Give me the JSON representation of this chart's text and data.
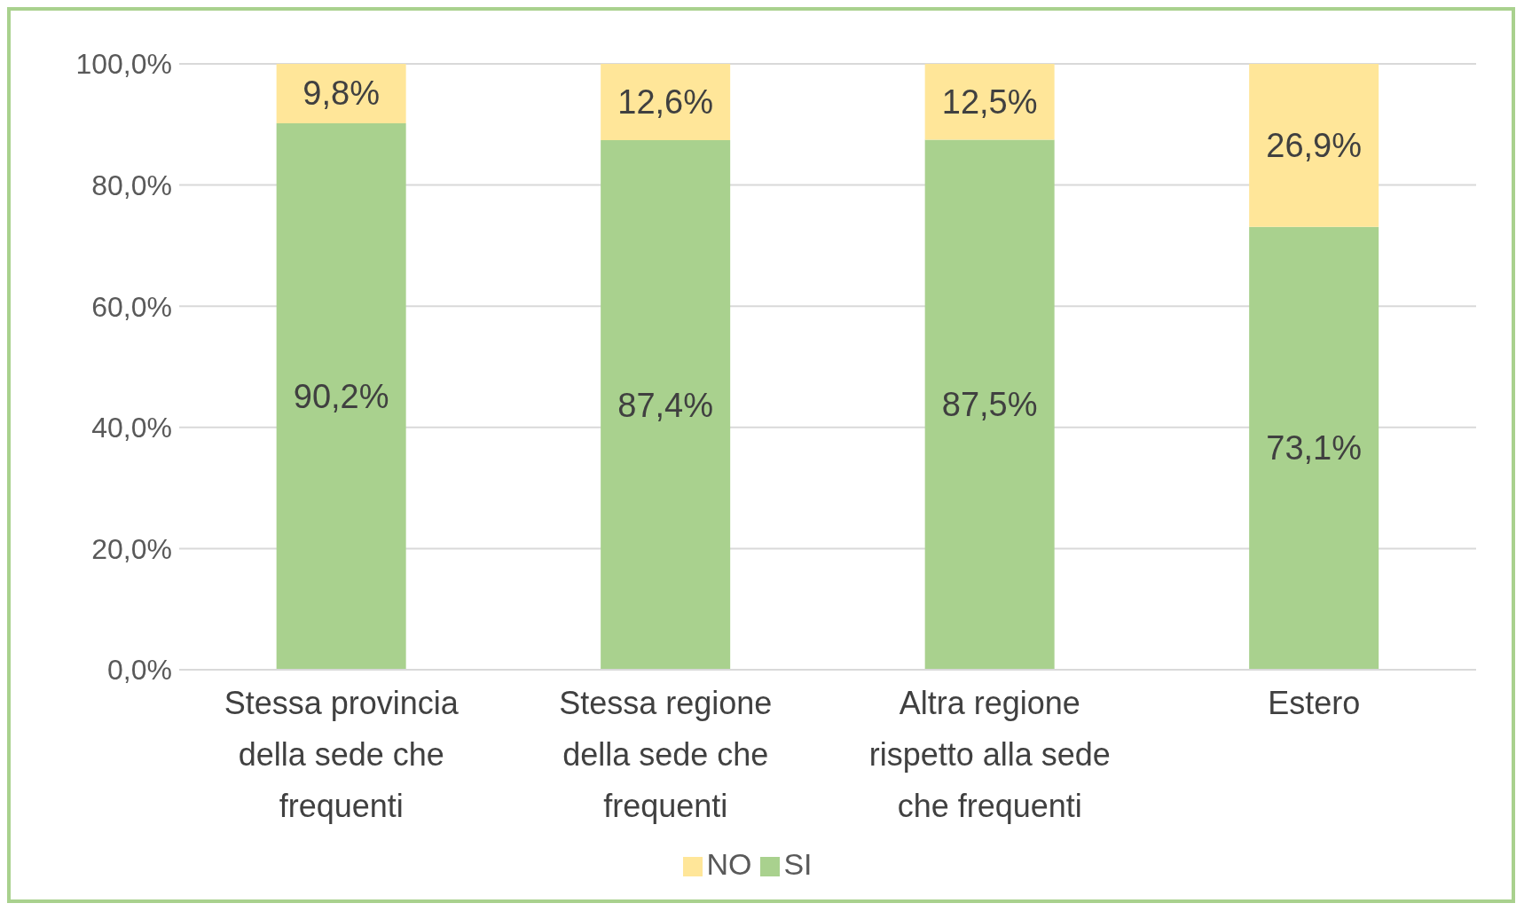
{
  "chart_data": {
    "type": "bar",
    "stacked": true,
    "categories": [
      "Stessa provincia della sede che frequenti",
      "Stessa regione della sede che frequenti",
      "Altra regione rispetto alla sede che frequenti",
      "Estero"
    ],
    "series": [
      {
        "name": "SI",
        "color": "#a9d18e",
        "values": [
          90.2,
          87.4,
          87.5,
          73.1
        ],
        "value_labels": [
          "90,2%",
          "87,4%",
          "87,5%",
          "73,1%"
        ]
      },
      {
        "name": "NO",
        "color": "#ffe699",
        "values": [
          9.8,
          12.6,
          12.5,
          26.9
        ],
        "value_labels": [
          "9,8%",
          "12,6%",
          "12,5%",
          "26,9%"
        ]
      }
    ],
    "ylim": [
      0,
      100
    ],
    "yticks": [
      {
        "value": 0,
        "label": "0,0%"
      },
      {
        "value": 20,
        "label": "20,0%"
      },
      {
        "value": 40,
        "label": "40,0%"
      },
      {
        "value": 60,
        "label": "60,0%"
      },
      {
        "value": 80,
        "label": "80,0%"
      },
      {
        "value": 100,
        "label": "100,0%"
      }
    ],
    "grid": "y",
    "legend": "bottom"
  }
}
